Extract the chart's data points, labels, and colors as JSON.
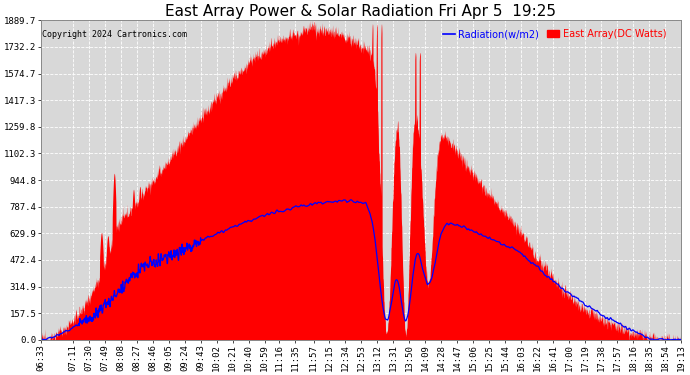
{
  "title": "East Array Power & Solar Radiation Fri Apr 5  19:25",
  "copyright": "Copyright 2024 Cartronics.com",
  "legend_radiation": "Radiation(w/m2)",
  "legend_east": "East Array(DC Watts)",
  "radiation_color": "#0000ff",
  "east_color": "#ff0000",
  "ymin": 0.0,
  "ymax": 1889.7,
  "yticks": [
    0.0,
    157.5,
    314.9,
    472.4,
    629.9,
    787.4,
    944.8,
    1102.3,
    1259.8,
    1417.3,
    1574.7,
    1732.2,
    1889.7
  ],
  "background_color": "#ffffff",
  "plot_bg_color": "#d8d8d8",
  "grid_color": "#ffffff",
  "title_fontsize": 11,
  "tick_fontsize": 6.5,
  "xtick_labels": [
    "06:33",
    "07:11",
    "07:30",
    "07:49",
    "08:08",
    "08:27",
    "08:46",
    "09:05",
    "09:24",
    "09:43",
    "10:02",
    "10:21",
    "10:40",
    "10:59",
    "11:16",
    "11:35",
    "11:57",
    "12:15",
    "12:34",
    "12:53",
    "13:12",
    "13:31",
    "13:50",
    "14:09",
    "14:28",
    "14:47",
    "15:06",
    "15:25",
    "15:44",
    "16:03",
    "16:22",
    "16:41",
    "17:00",
    "17:19",
    "17:38",
    "17:57",
    "18:16",
    "18:35",
    "18:54",
    "19:13"
  ]
}
